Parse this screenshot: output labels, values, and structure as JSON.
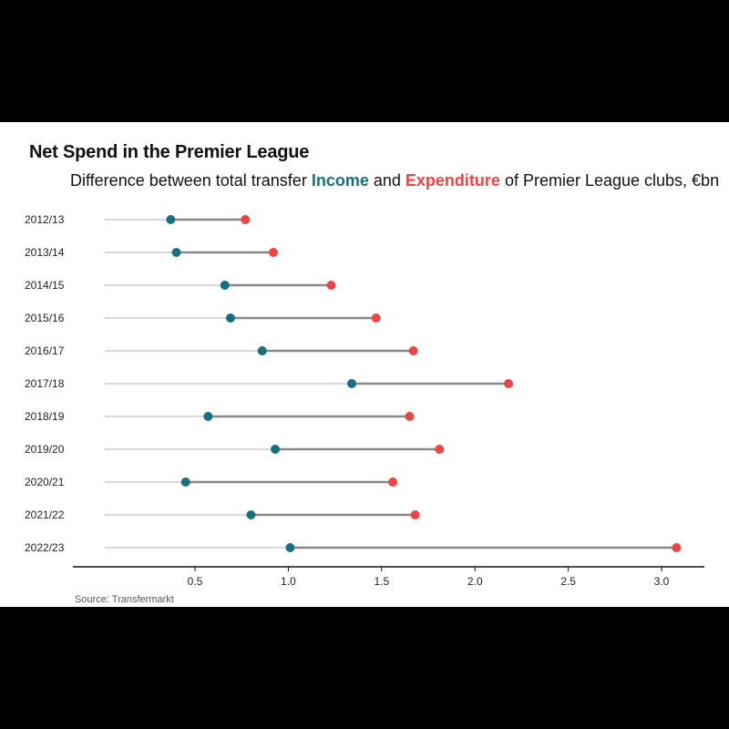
{
  "colors": {
    "income": "#17707d",
    "expenditure": "#ef4444",
    "connector": "#888888",
    "guide": "#cccccc",
    "axis": "#111111"
  },
  "text": {
    "title": "Net Spend in the Premier League",
    "subtitle_pre": "Difference between total transfer ",
    "subtitle_income": "Income",
    "subtitle_and": " and ",
    "subtitle_expenditure": "Expenditure",
    "subtitle_post": " of Premier League clubs, €bn",
    "source": "Source: Transfermarkt"
  },
  "chart_data": {
    "type": "dumbbell",
    "title": "Net Spend in the Premier League",
    "subtitle": "Difference between total transfer Income and Expenditure of Premier League clubs, €bn",
    "xlabel": "",
    "ylabel": "",
    "xlim": [
      0,
      3.2
    ],
    "xticks": [
      0.5,
      1.0,
      1.5,
      2.0,
      2.5,
      3.0
    ],
    "xtick_labels": [
      "0.5",
      "1.0",
      "1.5",
      "2.0",
      "2.5",
      "3.0"
    ],
    "categories": [
      "2012/13",
      "2013/14",
      "2014/15",
      "2015/16",
      "2016/17",
      "2017/18",
      "2018/19",
      "2019/20",
      "2020/21",
      "2021/22",
      "2022/23"
    ],
    "series": [
      {
        "name": "Income",
        "values": [
          0.37,
          0.4,
          0.66,
          0.69,
          0.86,
          1.34,
          0.57,
          0.93,
          0.45,
          0.8,
          1.01
        ]
      },
      {
        "name": "Expenditure",
        "values": [
          0.77,
          0.92,
          1.23,
          1.47,
          1.67,
          2.18,
          1.65,
          1.81,
          1.56,
          1.68,
          3.08
        ]
      }
    ],
    "grid": false,
    "legend": "none (series named in subtitle)"
  }
}
